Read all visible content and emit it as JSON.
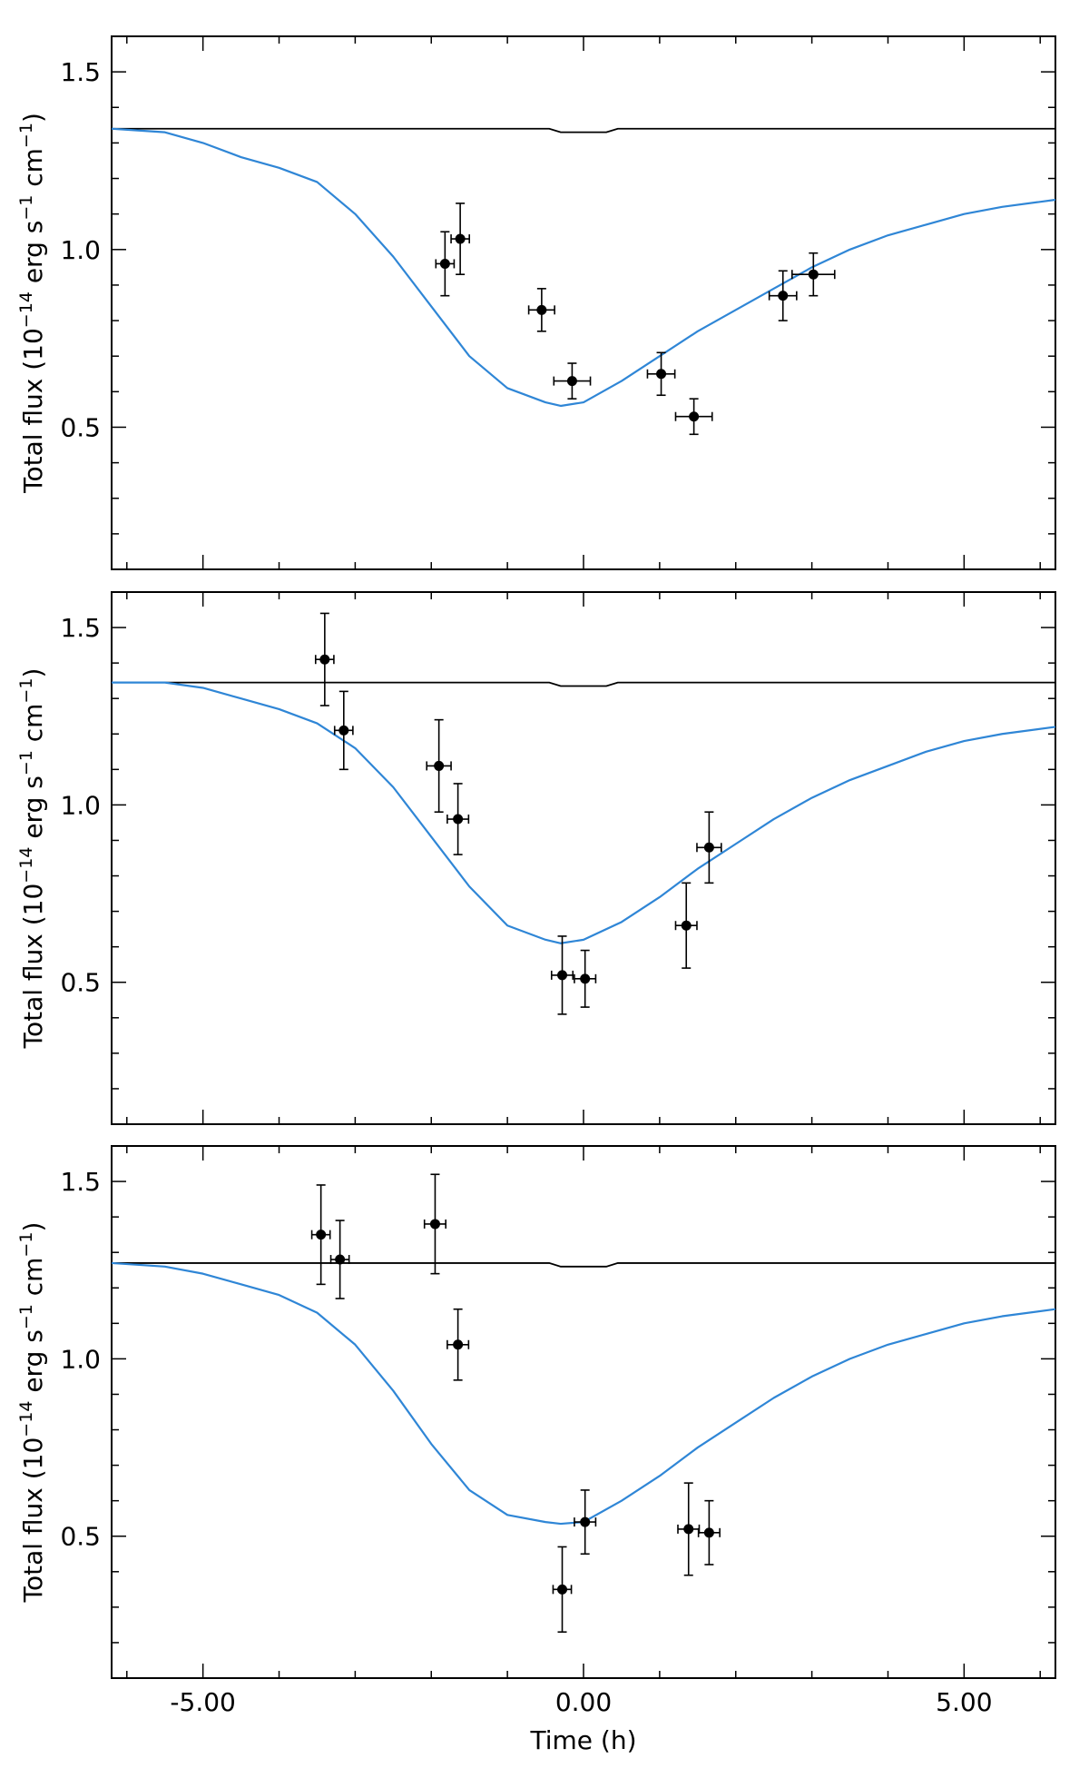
{
  "chart_data": [
    {
      "type": "scatter",
      "panel": "top",
      "xlabel": "",
      "ylabel": "Total flux (10^-14 erg s^-1 cm^-1)",
      "ylabel_parts": {
        "pre": "Total flux (10",
        "exp1": "−14",
        "mid1": " erg s",
        "exp2": "−1",
        "mid2": " cm",
        "exp3": "−1",
        "post": ")"
      },
      "xlim": [
        -6.2,
        6.2
      ],
      "ylim": [
        0.1,
        1.6
      ],
      "yticks": [
        "0.5",
        "1.0",
        "1.5"
      ],
      "xticks": [],
      "colors": {
        "model": "#2f86d6",
        "baseline": "#000000",
        "points": "#000000"
      },
      "baseline": {
        "x": [
          -6.2,
          -0.45,
          -0.3,
          0.3,
          0.45,
          6.2
        ],
        "y": [
          1.34,
          1.34,
          1.33,
          1.33,
          1.34,
          1.34
        ]
      },
      "model": {
        "x": [
          -6.2,
          -5.5,
          -5.0,
          -4.5,
          -4.0,
          -3.5,
          -3.0,
          -2.5,
          -2.0,
          -1.5,
          -1.0,
          -0.5,
          -0.3,
          0.0,
          0.5,
          1.0,
          1.5,
          2.0,
          2.5,
          3.0,
          3.5,
          4.0,
          4.5,
          5.0,
          5.5,
          6.2
        ],
        "y": [
          1.34,
          1.33,
          1.3,
          1.26,
          1.23,
          1.19,
          1.1,
          0.98,
          0.84,
          0.7,
          0.61,
          0.57,
          0.56,
          0.57,
          0.63,
          0.7,
          0.77,
          0.83,
          0.89,
          0.95,
          1.0,
          1.04,
          1.07,
          1.1,
          1.12,
          1.14
        ]
      },
      "points": [
        {
          "x": -1.82,
          "y": 0.96,
          "xerr": 0.12,
          "yerr": 0.09
        },
        {
          "x": -1.62,
          "y": 1.03,
          "xerr": 0.12,
          "yerr": 0.1
        },
        {
          "x": -0.55,
          "y": 0.83,
          "xerr": 0.17,
          "yerr": 0.06
        },
        {
          "x": -0.15,
          "y": 0.63,
          "xerr": 0.24,
          "yerr": 0.05
        },
        {
          "x": 1.02,
          "y": 0.65,
          "xerr": 0.18,
          "yerr": 0.06
        },
        {
          "x": 1.45,
          "y": 0.53,
          "xerr": 0.24,
          "yerr": 0.05
        },
        {
          "x": 2.62,
          "y": 0.87,
          "xerr": 0.18,
          "yerr": 0.07
        },
        {
          "x": 3.02,
          "y": 0.93,
          "xerr": 0.28,
          "yerr": 0.06
        }
      ]
    },
    {
      "type": "scatter",
      "panel": "middle",
      "xlabel": "",
      "ylabel": "Total flux (10^-14 erg s^-1 cm^-1)",
      "ylabel_parts": {
        "pre": "Total flux (10",
        "exp1": "−14",
        "mid1": " erg s",
        "exp2": "−1",
        "mid2": " cm",
        "exp3": "−1",
        "post": ")"
      },
      "xlim": [
        -6.2,
        6.2
      ],
      "ylim": [
        0.1,
        1.6
      ],
      "yticks": [
        "0.5",
        "1.0",
        "1.5"
      ],
      "xticks": [],
      "colors": {
        "model": "#2f86d6",
        "baseline": "#000000",
        "points": "#000000"
      },
      "baseline": {
        "x": [
          -6.2,
          -0.45,
          -0.3,
          0.3,
          0.45,
          6.2
        ],
        "y": [
          1.345,
          1.345,
          1.335,
          1.335,
          1.345,
          1.345
        ]
      },
      "model": {
        "x": [
          -6.2,
          -5.5,
          -5.0,
          -4.5,
          -4.0,
          -3.5,
          -3.0,
          -2.5,
          -2.0,
          -1.5,
          -1.0,
          -0.5,
          -0.3,
          0.0,
          0.5,
          1.0,
          1.5,
          2.0,
          2.5,
          3.0,
          3.5,
          4.0,
          4.5,
          5.0,
          5.5,
          6.2
        ],
        "y": [
          1.345,
          1.345,
          1.33,
          1.3,
          1.27,
          1.23,
          1.16,
          1.05,
          0.91,
          0.77,
          0.66,
          0.62,
          0.61,
          0.62,
          0.67,
          0.74,
          0.82,
          0.89,
          0.96,
          1.02,
          1.07,
          1.11,
          1.15,
          1.18,
          1.2,
          1.22
        ]
      },
      "points": [
        {
          "x": -3.4,
          "y": 1.41,
          "xerr": 0.12,
          "yerr": 0.13
        },
        {
          "x": -3.15,
          "y": 1.21,
          "xerr": 0.12,
          "yerr": 0.11
        },
        {
          "x": -1.9,
          "y": 1.11,
          "xerr": 0.16,
          "yerr": 0.13
        },
        {
          "x": -1.65,
          "y": 0.96,
          "xerr": 0.14,
          "yerr": 0.1
        },
        {
          "x": -0.28,
          "y": 0.52,
          "xerr": 0.14,
          "yerr": 0.11
        },
        {
          "x": 0.02,
          "y": 0.51,
          "xerr": 0.14,
          "yerr": 0.08
        },
        {
          "x": 1.35,
          "y": 0.66,
          "xerr": 0.14,
          "yerr": 0.12
        },
        {
          "x": 1.65,
          "y": 0.88,
          "xerr": 0.16,
          "yerr": 0.1
        }
      ]
    },
    {
      "type": "scatter",
      "panel": "bottom",
      "xlabel": "Time (h)",
      "ylabel": "Total flux (10^-14 erg s^-1 cm^-1)",
      "ylabel_parts": {
        "pre": "Total flux (10",
        "exp1": "−14",
        "mid1": " erg s",
        "exp2": "−1",
        "mid2": " cm",
        "exp3": "−1",
        "post": ")"
      },
      "xlim": [
        -6.2,
        6.2
      ],
      "ylim": [
        0.1,
        1.6
      ],
      "yticks": [
        "0.5",
        "1.0",
        "1.5"
      ],
      "xticks": [
        "-5.00",
        "0.00",
        "5.00"
      ],
      "colors": {
        "model": "#2f86d6",
        "baseline": "#000000",
        "points": "#000000"
      },
      "baseline": {
        "x": [
          -6.2,
          -0.45,
          -0.3,
          0.3,
          0.45,
          6.2
        ],
        "y": [
          1.27,
          1.27,
          1.26,
          1.26,
          1.27,
          1.27
        ]
      },
      "model": {
        "x": [
          -6.2,
          -5.5,
          -5.0,
          -4.5,
          -4.0,
          -3.5,
          -3.0,
          -2.5,
          -2.0,
          -1.5,
          -1.0,
          -0.5,
          -0.3,
          0.0,
          0.5,
          1.0,
          1.5,
          2.0,
          2.5,
          3.0,
          3.5,
          4.0,
          4.5,
          5.0,
          5.5,
          6.2
        ],
        "y": [
          1.27,
          1.26,
          1.24,
          1.21,
          1.18,
          1.13,
          1.04,
          0.91,
          0.76,
          0.63,
          0.56,
          0.54,
          0.535,
          0.54,
          0.6,
          0.67,
          0.75,
          0.82,
          0.89,
          0.95,
          1.0,
          1.04,
          1.07,
          1.1,
          1.12,
          1.14
        ]
      },
      "points": [
        {
          "x": -3.45,
          "y": 1.35,
          "xerr": 0.12,
          "yerr": 0.14
        },
        {
          "x": -3.2,
          "y": 1.28,
          "xerr": 0.12,
          "yerr": 0.11
        },
        {
          "x": -1.95,
          "y": 1.38,
          "xerr": 0.14,
          "yerr": 0.14
        },
        {
          "x": -1.65,
          "y": 1.04,
          "xerr": 0.14,
          "yerr": 0.1
        },
        {
          "x": -0.28,
          "y": 0.35,
          "xerr": 0.12,
          "yerr": 0.12
        },
        {
          "x": 0.02,
          "y": 0.54,
          "xerr": 0.14,
          "yerr": 0.09
        },
        {
          "x": 1.38,
          "y": 0.52,
          "xerr": 0.14,
          "yerr": 0.13
        },
        {
          "x": 1.65,
          "y": 0.51,
          "xerr": 0.14,
          "yerr": 0.09
        }
      ]
    }
  ]
}
